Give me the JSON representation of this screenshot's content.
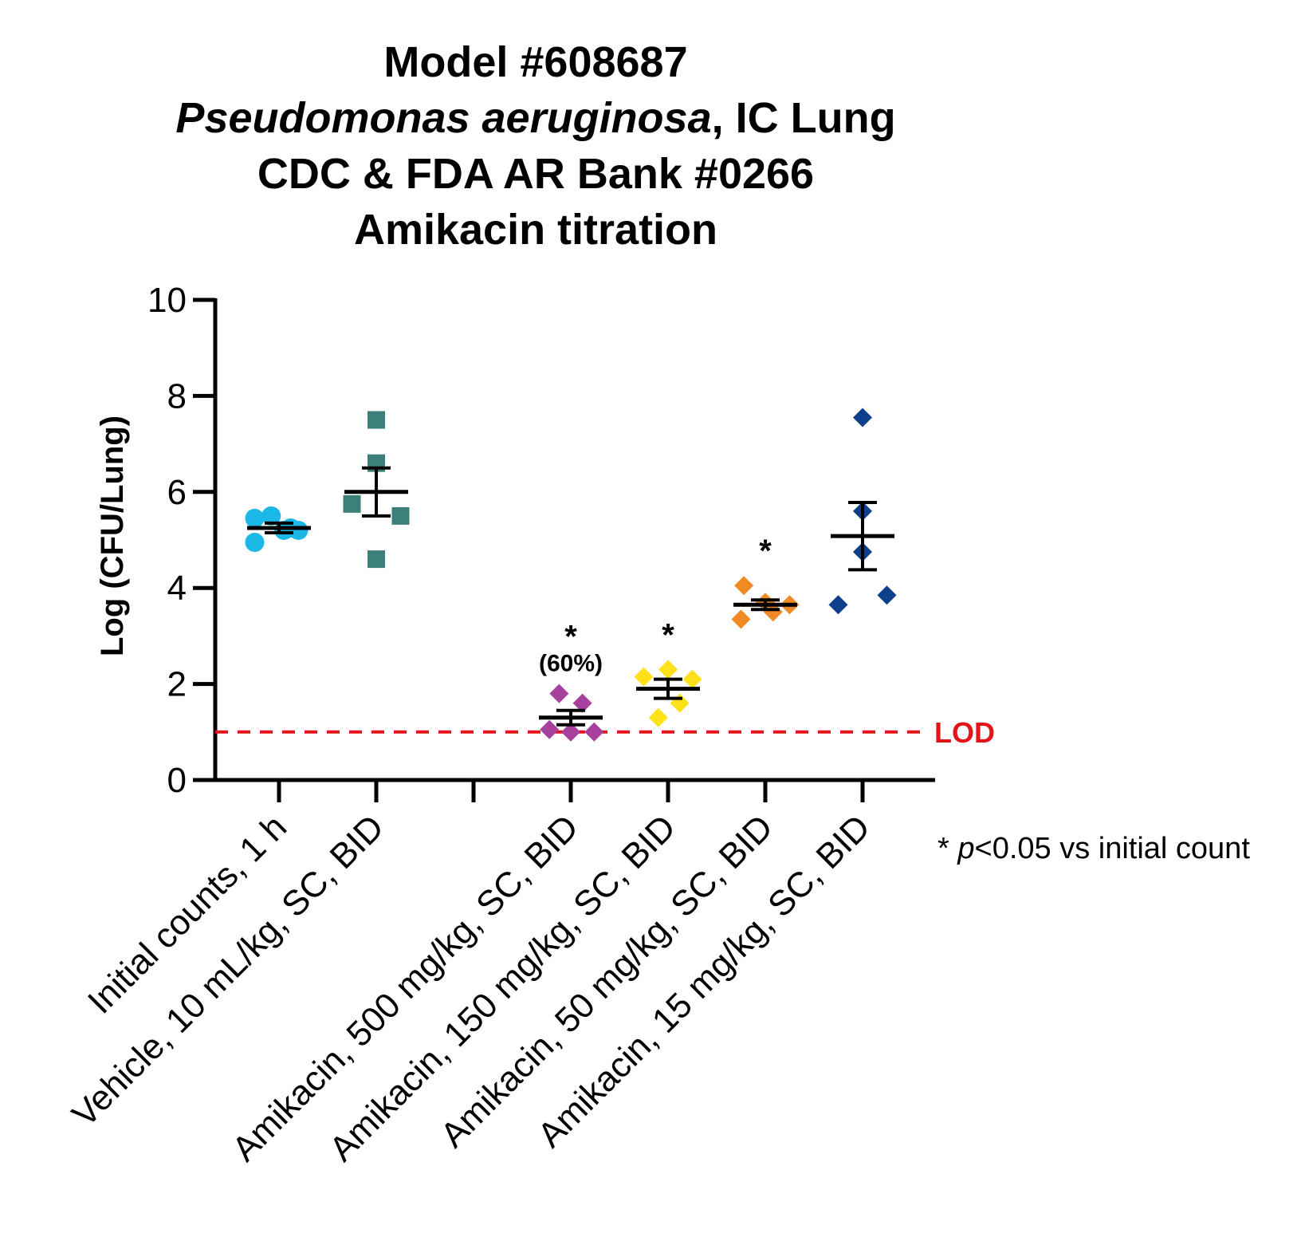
{
  "chart_data": {
    "type": "scatter",
    "title_lines": [
      "Model #608687",
      "Pseudomonas aeruginosa, IC Lung",
      "CDC & FDA AR Bank #0266",
      "Amikacin titration"
    ],
    "title_italic": "Pseudomonas aeruginosa",
    "title_suffix": ", IC Lung",
    "ylabel": "Log (CFU/Lung)",
    "ylim": [
      0,
      10
    ],
    "yticks": [
      0,
      2,
      4,
      6,
      8,
      10
    ],
    "categories": [
      "Initial counts, 1 h",
      "Vehicle, 10 mL/kg, SC, BID",
      "",
      "Amikacin, 500 mg/kg, SC, BID",
      "Amikacin, 150 mg/kg, SC, BID",
      "Amikacin, 50 mg/kg, SC, BID",
      "Amikacin, 15 mg/kg, SC, BID"
    ],
    "series": [
      {
        "category_index": 0,
        "marker": "circle",
        "color": "#1bb7e6",
        "values": [
          5.45,
          5.5,
          5.2,
          4.95,
          5.25,
          5.2
        ],
        "offsets": [
          -0.25,
          -0.08,
          0.05,
          -0.25,
          0.12,
          0.2
        ],
        "mean": 5.25,
        "sem_low": 5.15,
        "sem_high": 5.35
      },
      {
        "category_index": 1,
        "marker": "square",
        "color": "#3d7f7a",
        "values": [
          7.5,
          6.6,
          5.75,
          5.5,
          4.6
        ],
        "offsets": [
          0.0,
          0.0,
          -0.25,
          0.25,
          0.0
        ],
        "mean": 6.0,
        "sem_low": 5.5,
        "sem_high": 6.5
      },
      {
        "category_index": 3,
        "marker": "diamond",
        "color": "#a8409e",
        "values": [
          1.8,
          1.6,
          1.05,
          1.0,
          1.0
        ],
        "offsets": [
          -0.12,
          0.12,
          -0.22,
          0.0,
          0.24
        ],
        "mean": 1.3,
        "sem_low": 1.15,
        "sem_high": 1.45
      },
      {
        "category_index": 4,
        "marker": "diamond",
        "color": "#ffe119",
        "values": [
          2.3,
          2.15,
          2.1,
          1.6,
          1.3
        ],
        "offsets": [
          0.0,
          -0.25,
          0.25,
          0.12,
          -0.1
        ],
        "mean": 1.9,
        "sem_low": 1.7,
        "sem_high": 2.1
      },
      {
        "category_index": 5,
        "marker": "diamond",
        "color": "#f08a24",
        "values": [
          4.05,
          3.7,
          3.65,
          3.5,
          3.35
        ],
        "offsets": [
          -0.22,
          0.0,
          0.25,
          0.08,
          -0.25
        ],
        "mean": 3.65,
        "sem_low": 3.55,
        "sem_high": 3.75
      },
      {
        "category_index": 6,
        "marker": "diamond",
        "color": "#0d3f8a",
        "values": [
          7.55,
          5.6,
          4.75,
          3.85,
          3.65
        ],
        "offsets": [
          0.0,
          0.0,
          0.0,
          0.25,
          -0.25
        ],
        "mean": 5.08,
        "sem_low": 4.38,
        "sem_high": 5.78
      }
    ],
    "significance": [
      {
        "category_index": 3,
        "mark": "*",
        "note": "(60%)"
      },
      {
        "category_index": 4,
        "mark": "*"
      },
      {
        "category_index": 5,
        "mark": "*"
      }
    ],
    "lod": {
      "value": 1.0,
      "label": "LOD",
      "color": "#e3141b"
    },
    "footnote": {
      "prefix": "* ",
      "italic": "p",
      "rest": "<0.05 vs initial count"
    }
  }
}
